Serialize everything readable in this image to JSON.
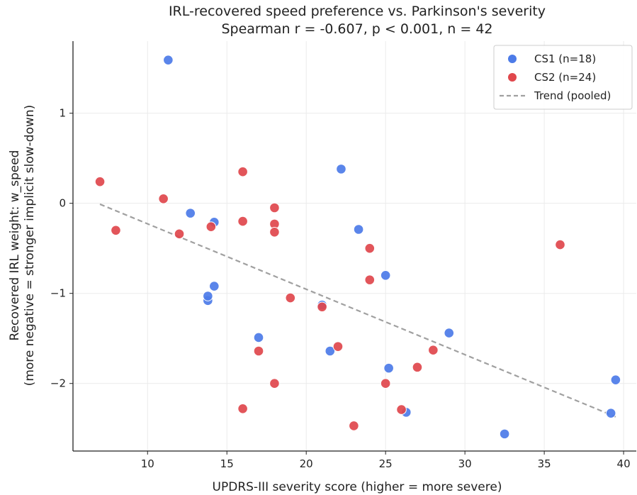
{
  "chart_data": {
    "type": "scatter",
    "title": "IRL-recovered speed preference vs. Parkinson's severity",
    "subtitle": "Spearman r = -0.607, p < 0.001, n = 42",
    "xlabel": "UPDRS-III severity score (higher = more severe)",
    "ylabel_line1": "Recovered IRL weight: w_speed",
    "ylabel_line2": "(more negative = stronger implicit slow-down)",
    "xlim": [
      5.3,
      40.8
    ],
    "ylim": [
      -2.75,
      1.8
    ],
    "x_ticks": [
      10,
      15,
      20,
      25,
      30,
      35,
      40
    ],
    "y_ticks": [
      1,
      0,
      -1,
      -2
    ],
    "y_tick_labels": [
      "1",
      "0",
      "−1",
      "−2"
    ],
    "grid": true,
    "legend_position": "top-right",
    "series": [
      {
        "name": "CS1 (n=18)",
        "color": "#4c7be8",
        "points": [
          {
            "x": 11.3,
            "y": 1.59
          },
          {
            "x": 12.7,
            "y": -0.11
          },
          {
            "x": 14.2,
            "y": -0.21
          },
          {
            "x": 13.8,
            "y": -1.08
          },
          {
            "x": 13.8,
            "y": -1.03
          },
          {
            "x": 14.2,
            "y": -0.92
          },
          {
            "x": 17.0,
            "y": -1.49
          },
          {
            "x": 22.2,
            "y": 0.38
          },
          {
            "x": 23.3,
            "y": -0.29
          },
          {
            "x": 21.0,
            "y": -1.13
          },
          {
            "x": 21.5,
            "y": -1.64
          },
          {
            "x": 25.0,
            "y": -0.8
          },
          {
            "x": 25.2,
            "y": -1.83
          },
          {
            "x": 26.3,
            "y": -2.32
          },
          {
            "x": 29.0,
            "y": -1.44
          },
          {
            "x": 32.5,
            "y": -2.56
          },
          {
            "x": 39.2,
            "y": -2.33
          },
          {
            "x": 39.5,
            "y": -1.96
          }
        ]
      },
      {
        "name": "CS2 (n=24)",
        "color": "#e0474c",
        "points": [
          {
            "x": 7.0,
            "y": 0.24
          },
          {
            "x": 8.0,
            "y": -0.3
          },
          {
            "x": 11.0,
            "y": 0.05
          },
          {
            "x": 12.0,
            "y": -0.34
          },
          {
            "x": 14.0,
            "y": -0.26
          },
          {
            "x": 16.0,
            "y": 0.35
          },
          {
            "x": 16.0,
            "y": -0.2
          },
          {
            "x": 18.0,
            "y": -0.05
          },
          {
            "x": 18.0,
            "y": -0.23
          },
          {
            "x": 18.0,
            "y": -0.32
          },
          {
            "x": 19.0,
            "y": -1.05
          },
          {
            "x": 21.0,
            "y": -1.15
          },
          {
            "x": 17.0,
            "y": -1.64
          },
          {
            "x": 18.0,
            "y": -2.0
          },
          {
            "x": 16.0,
            "y": -2.28
          },
          {
            "x": 22.0,
            "y": -1.59
          },
          {
            "x": 24.0,
            "y": -0.5
          },
          {
            "x": 24.0,
            "y": -0.85
          },
          {
            "x": 23.0,
            "y": -2.47
          },
          {
            "x": 25.0,
            "y": -2.0
          },
          {
            "x": 26.0,
            "y": -2.29
          },
          {
            "x": 27.0,
            "y": -1.82
          },
          {
            "x": 28.0,
            "y": -1.63
          },
          {
            "x": 36.0,
            "y": -0.46
          }
        ]
      }
    ],
    "trend": {
      "name": "Trend (pooled)",
      "color": "#a0a0a0",
      "style": "dashed",
      "x": [
        7.0,
        39.5
      ],
      "y": [
        -0.01,
        -2.37
      ]
    }
  }
}
